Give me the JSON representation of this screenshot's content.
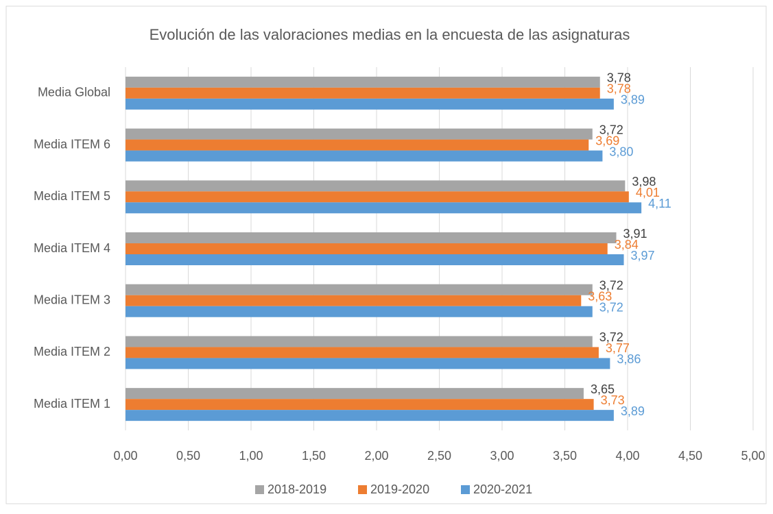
{
  "chart_data": {
    "type": "hbar",
    "title": "Evolución de las valoraciones medias en la encuesta de las asignaturas",
    "categories": [
      "Media Global",
      "Media ITEM 6",
      "Media ITEM 5",
      "Media ITEM 4",
      "Media ITEM 3",
      "Media ITEM 2",
      "Media ITEM 1"
    ],
    "series": [
      {
        "name": "2018-2019",
        "color": "#a5a5a5",
        "label_color": "#404040",
        "values": [
          3.78,
          3.72,
          3.98,
          3.91,
          3.72,
          3.72,
          3.65
        ],
        "value_labels": [
          "3,78",
          "3,72",
          "3,98",
          "3,91",
          "3,72",
          "3,72",
          "3,65"
        ]
      },
      {
        "name": "2019-2020",
        "color": "#ed7d31",
        "label_color": "#ed7d31",
        "values": [
          3.78,
          3.69,
          4.01,
          3.84,
          3.63,
          3.77,
          3.73
        ],
        "value_labels": [
          "3,78",
          "3,69",
          "4,01",
          "3,84",
          "3,63",
          "3,77",
          "3,73"
        ]
      },
      {
        "name": "2020-2021",
        "color": "#5b9bd5",
        "label_color": "#5b9bd5",
        "values": [
          3.89,
          3.8,
          4.11,
          3.97,
          3.72,
          3.86,
          3.89
        ],
        "value_labels": [
          "3,89",
          "3,80",
          "4,11",
          "3,97",
          "3,72",
          "3,86",
          "3,89"
        ]
      }
    ],
    "xlim": [
      0,
      5
    ],
    "xticks": [
      {
        "value": 0,
        "label": "0,00"
      },
      {
        "value": 0.5,
        "label": "0,50"
      },
      {
        "value": 1,
        "label": "1,00"
      },
      {
        "value": 1.5,
        "label": "1,50"
      },
      {
        "value": 2,
        "label": "2,00"
      },
      {
        "value": 2.5,
        "label": "2,50"
      },
      {
        "value": 3,
        "label": "3,00"
      },
      {
        "value": 3.5,
        "label": "3,50"
      },
      {
        "value": 4,
        "label": "4,00"
      },
      {
        "value": 4.5,
        "label": "4,50"
      },
      {
        "value": 5,
        "label": "5,00"
      }
    ],
    "grid": true,
    "legend": "bottom"
  }
}
